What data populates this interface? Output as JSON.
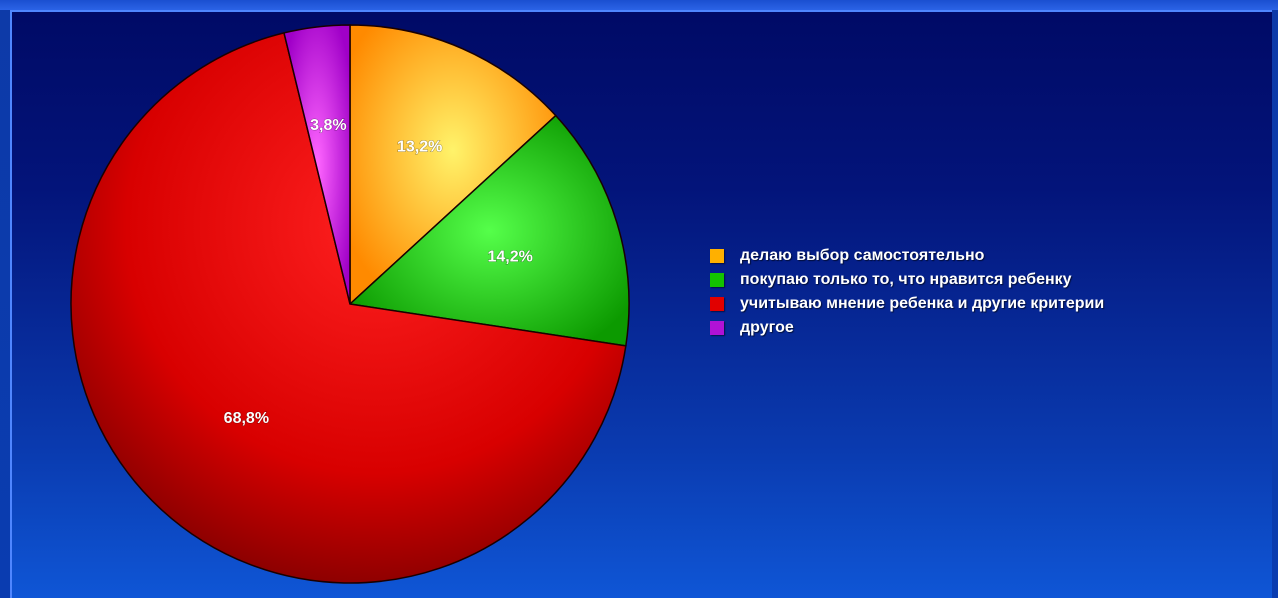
{
  "chart_data": {
    "type": "pie",
    "title": "",
    "slices": [
      {
        "label": "делаю выбор самостоятельно",
        "value": 13.2,
        "value_label": "13,2%",
        "color": "#ffb000"
      },
      {
        "label": "покупаю только то, что нравится ребенку",
        "value": 14.2,
        "value_label": "14,2%",
        "color": "#13c300"
      },
      {
        "label": "учитываю мнение ребенка и другие критерии",
        "value": 68.8,
        "value_label": "68,8%",
        "color": "#e10000"
      },
      {
        "label": "другое",
        "value": 3.8,
        "value_label": "3,8%",
        "color": "#b012d6"
      }
    ],
    "legend_position": "right",
    "start_angle_deg": 0,
    "direction": "clockwise"
  }
}
